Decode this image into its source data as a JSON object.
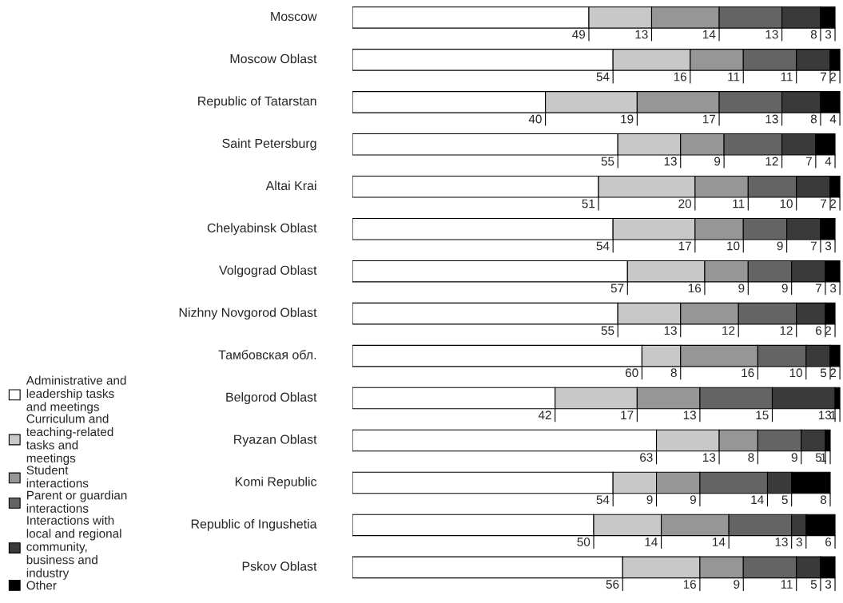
{
  "chart_data": {
    "type": "bar",
    "orientation": "horizontal",
    "stacked": true,
    "data_labels": true,
    "legend": "left",
    "grid": false,
    "categories": [
      "Moscow",
      "Moscow Oblast",
      "Republic of Tatarstan",
      "Saint Petersburg",
      "Altai Krai",
      "Chelyabinsk Oblast",
      "Volgograd Oblast",
      "Nizhny Novgorod Oblast",
      "Тамбовская обл.",
      "Belgorod Oblast",
      "Ryazan Oblast",
      "Komi Republic",
      "Republic of Ingushetia",
      "Pskov Oblast"
    ],
    "series": [
      {
        "name": "Administrative and\nleadership tasks\nand meetings",
        "color": "#ffffff",
        "values": [
          49,
          54,
          40,
          55,
          51,
          54,
          57,
          55,
          60,
          42,
          63,
          54,
          50,
          56
        ]
      },
      {
        "name": "Curriculum and\nteaching-related\ntasks and\nmeetings",
        "color": "#c8c8c8",
        "values": [
          13,
          16,
          19,
          13,
          20,
          17,
          16,
          13,
          8,
          17,
          13,
          9,
          14,
          16
        ]
      },
      {
        "name": "Student\ninteractions",
        "color": "#969696",
        "values": [
          14,
          11,
          17,
          9,
          11,
          10,
          9,
          12,
          16,
          13,
          8,
          9,
          14,
          9
        ]
      },
      {
        "name": "Parent or guardian\ninteractions",
        "color": "#646464",
        "values": [
          13,
          11,
          13,
          12,
          10,
          9,
          9,
          12,
          10,
          15,
          9,
          14,
          13,
          11
        ]
      },
      {
        "name": "Interactions with\nlocal and regional\ncommunity,\nbusiness and\nindustry",
        "color": "#3a3a3a",
        "values": [
          8,
          7,
          8,
          7,
          7,
          7,
          7,
          6,
          5,
          13,
          5,
          5,
          3,
          5
        ]
      },
      {
        "name": "Other",
        "color": "#000000",
        "values": [
          3,
          2,
          4,
          4,
          2,
          3,
          3,
          2,
          2,
          1,
          1,
          8,
          6,
          3
        ]
      }
    ]
  }
}
